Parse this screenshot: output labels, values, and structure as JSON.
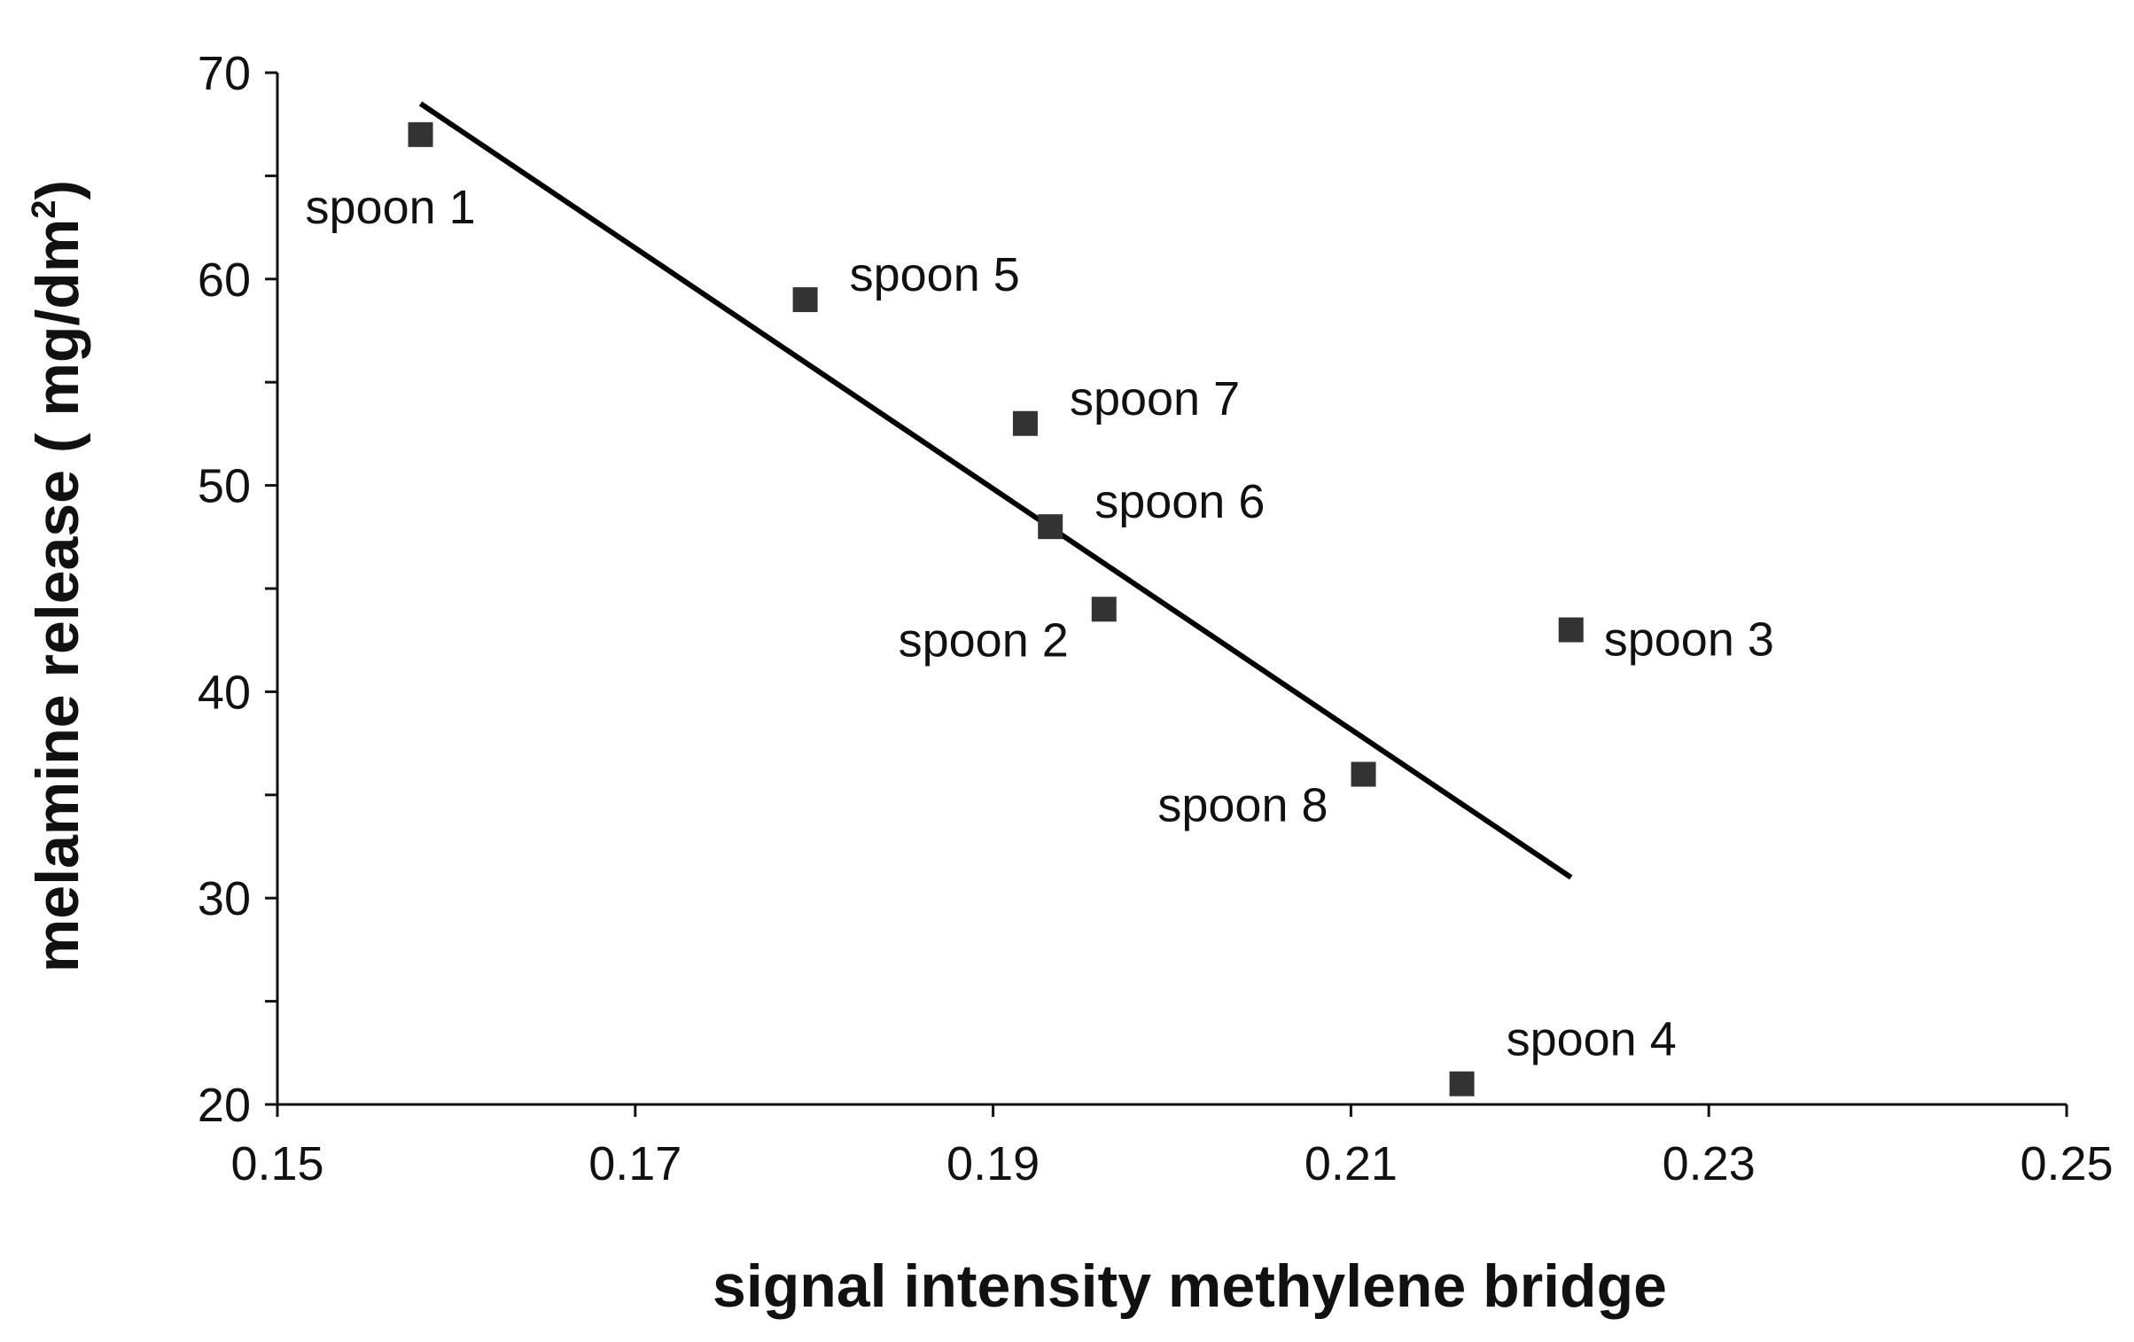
{
  "chart_data": {
    "type": "scatter",
    "title": "",
    "xlabel": "signal intensity methylene bridge",
    "ylabel": "melamine release ( mg/dm",
    "ylabel_superscript": "2",
    "ylabel_close": ")",
    "xlim": [
      0.15,
      0.25
    ],
    "ylim": [
      20,
      70
    ],
    "xticks": [
      "0.15",
      "0.17",
      "0.19",
      "0.21",
      "0.23",
      "0.25"
    ],
    "yticks": [
      "20",
      "30",
      "40",
      "50",
      "60",
      "70"
    ],
    "grid": false,
    "legend": "none",
    "points": [
      {
        "label": "spoon 1",
        "x": 0.158,
        "y": 67,
        "label_pos": "below-left"
      },
      {
        "label": "spoon 5",
        "x": 0.1795,
        "y": 59,
        "label_pos": "right-up"
      },
      {
        "label": "spoon 7",
        "x": 0.1918,
        "y": 53,
        "label_pos": "right-up"
      },
      {
        "label": "spoon 6",
        "x": 0.1932,
        "y": 48,
        "label_pos": "right-up"
      },
      {
        "label": "spoon 2",
        "x": 0.1962,
        "y": 44,
        "label_pos": "left-down"
      },
      {
        "label": "spoon 3",
        "x": 0.2223,
        "y": 43,
        "label_pos": "right-down"
      },
      {
        "label": "spoon 8",
        "x": 0.2107,
        "y": 36,
        "label_pos": "left-down"
      },
      {
        "label": "spoon 4",
        "x": 0.2162,
        "y": 21,
        "label_pos": "right-up"
      }
    ],
    "trendline": {
      "x": [
        0.158,
        0.2223
      ],
      "y": [
        68.5,
        31
      ]
    },
    "marker_color": "#333333",
    "line_color": "#000000"
  }
}
